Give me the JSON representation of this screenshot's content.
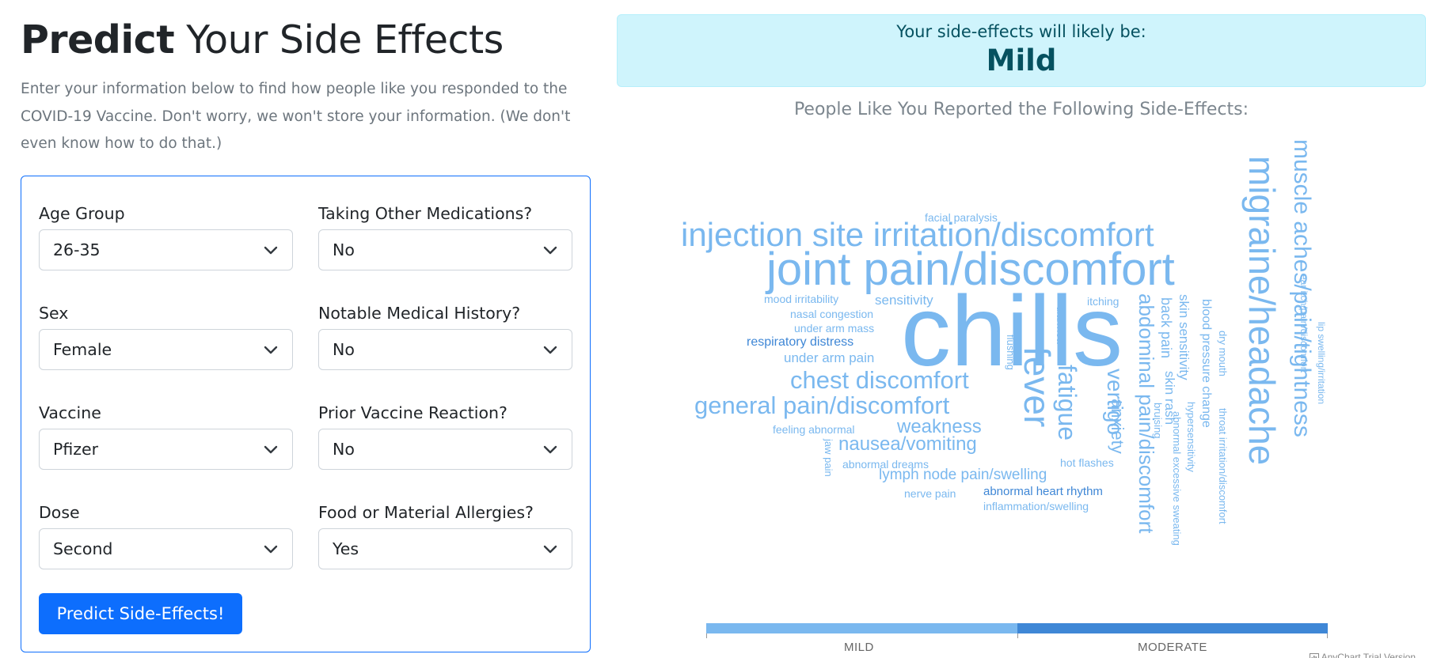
{
  "page": {
    "title_bold": "Predict",
    "title_rest": " Your Side Effects",
    "intro": "Enter your information below to find how people like you responded to the COVID-19 Vaccine. Don't worry, we won't store your information. (We don't even know how to do that.)"
  },
  "form": {
    "age_group": {
      "label": "Age Group",
      "value": "26-35"
    },
    "other_meds": {
      "label": "Taking Other Medications?",
      "value": "No"
    },
    "sex": {
      "label": "Sex",
      "value": "Female"
    },
    "medical_history": {
      "label": "Notable Medical History?",
      "value": "No"
    },
    "vaccine": {
      "label": "Vaccine",
      "value": "Pfizer"
    },
    "prior_reaction": {
      "label": "Prior Vaccine Reaction?",
      "value": "No"
    },
    "dose": {
      "label": "Dose",
      "value": "Second"
    },
    "allergies": {
      "label": "Food or Material Allergies?",
      "value": "Yes"
    },
    "submit_label": "Predict Side-Effects!"
  },
  "result": {
    "caption": "Your side-effects will likely be:",
    "value": "Mild"
  },
  "cloud": {
    "title": "People Like You Reported the Following Side-Effects:",
    "words": [
      "chills",
      "joint pain/discomfort",
      "injection site irritation/discomfort",
      "migraine/headache",
      "muscle aches/pain/tightness",
      "fever",
      "general pain/discomfort",
      "chest discomfort",
      "abdominal pain/discomfort",
      "fatigue",
      "nausea/vomiting",
      "weakness",
      "vertigo",
      "anxiety",
      "lymph node pain/swelling",
      "sensitivity",
      "skin sensitivity",
      "back pain",
      "skin rash",
      "blood pressure change",
      "respiratory distress",
      "under arm pain",
      "abnormal heart rhythm",
      "facial paralysis",
      "mood irritability",
      "nasal congestion",
      "under arm mass",
      "itching",
      "diarrhea",
      "flushing",
      "feeling abnormal",
      "jaw pain",
      "abnormal dreams",
      "nerve pain",
      "inflammation/swelling",
      "hot flashes",
      "dry mouth",
      "bruising",
      "hypersensitivity",
      "abnormal excessive sweating",
      "throat irritation/discomfort",
      "ear itch/pain/discomfort",
      "lip swelling/irritation"
    ],
    "color_mild": "#7ab8ef",
    "color_moderate": "#3f87d6"
  },
  "scale": {
    "mild_label": "MILD",
    "moderate_label": "MODERATE"
  },
  "credit": "AnyChart Trial Version"
}
